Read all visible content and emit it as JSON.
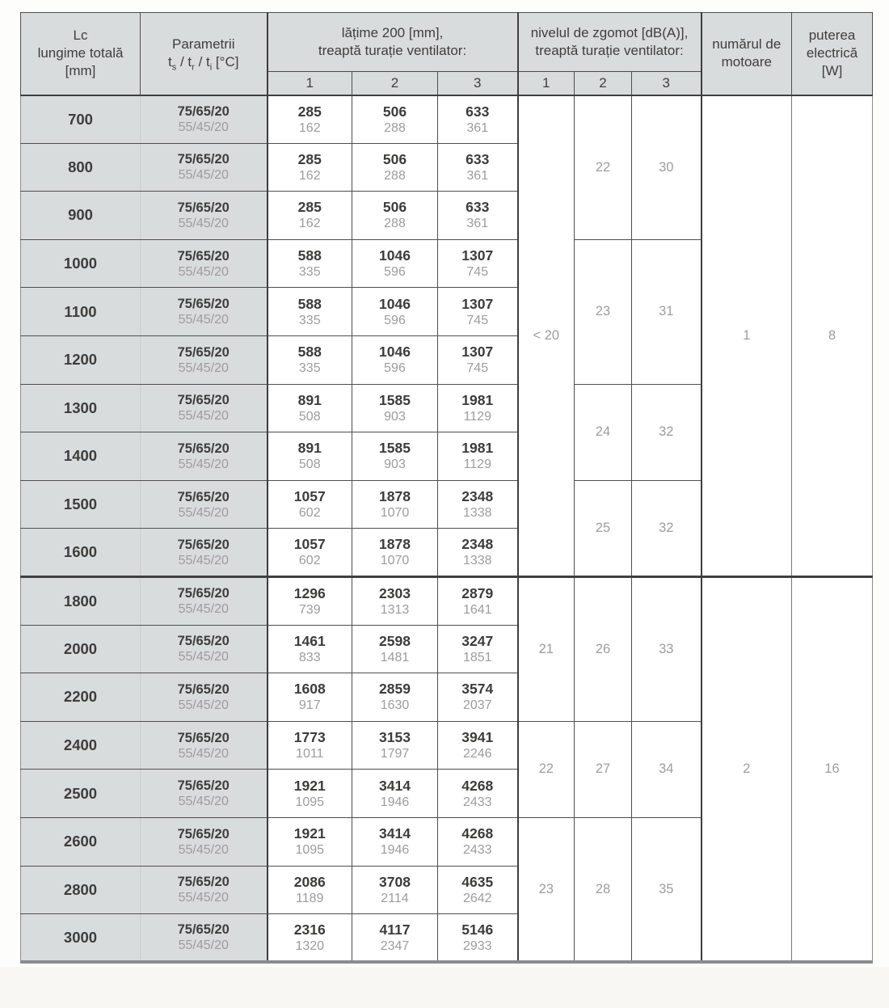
{
  "table": {
    "header": {
      "lc": {
        "line1": "Lc",
        "line2": "lungime totală",
        "line3": "[mm]"
      },
      "param": {
        "title": "Parametrii",
        "t1": "t",
        "sub1": "s",
        "mid1": " / t",
        "sub2": "r",
        "mid2": " / t",
        "sub3": "i",
        "unit": " [°C]"
      },
      "width_section": {
        "line1": "lățime 200 [mm],",
        "line2": "treaptă turație ventilator:"
      },
      "noise_section": {
        "line1": "nivelul de zgomot [dB(A)],",
        "line2": "treaptă turație ventilator:"
      },
      "motors": {
        "line1": "numărul de",
        "line2": "motoare"
      },
      "power": {
        "line1": "puterea",
        "line2": "electrică",
        "line3": "[W]"
      },
      "fan_steps": [
        "1",
        "2",
        "3"
      ],
      "noise_steps": [
        "1",
        "2",
        "3"
      ]
    },
    "sections": [
      {
        "name": "single-motor",
        "rows": [
          {
            "lc": "700",
            "param_hot": "75/65/20",
            "param_low": "55/45/20",
            "outputs": [
              [
                "285",
                "162"
              ],
              [
                "506",
                "288"
              ],
              [
                "633",
                "361"
              ]
            ]
          },
          {
            "lc": "800",
            "param_hot": "75/65/20",
            "param_low": "55/45/20",
            "outputs": [
              [
                "285",
                "162"
              ],
              [
                "506",
                "288"
              ],
              [
                "633",
                "361"
              ]
            ]
          },
          {
            "lc": "900",
            "param_hot": "75/65/20",
            "param_low": "55/45/20",
            "outputs": [
              [
                "285",
                "162"
              ],
              [
                "506",
                "288"
              ],
              [
                "633",
                "361"
              ]
            ]
          },
          {
            "lc": "1000",
            "param_hot": "75/65/20",
            "param_low": "55/45/20",
            "outputs": [
              [
                "588",
                "335"
              ],
              [
                "1046",
                "596"
              ],
              [
                "1307",
                "745"
              ]
            ]
          },
          {
            "lc": "1100",
            "param_hot": "75/65/20",
            "param_low": "55/45/20",
            "outputs": [
              [
                "588",
                "335"
              ],
              [
                "1046",
                "596"
              ],
              [
                "1307",
                "745"
              ]
            ]
          },
          {
            "lc": "1200",
            "param_hot": "75/65/20",
            "param_low": "55/45/20",
            "outputs": [
              [
                "588",
                "335"
              ],
              [
                "1046",
                "596"
              ],
              [
                "1307",
                "745"
              ]
            ]
          },
          {
            "lc": "1300",
            "param_hot": "75/65/20",
            "param_low": "55/45/20",
            "outputs": [
              [
                "891",
                "508"
              ],
              [
                "1585",
                "903"
              ],
              [
                "1981",
                "1129"
              ]
            ]
          },
          {
            "lc": "1400",
            "param_hot": "75/65/20",
            "param_low": "55/45/20",
            "outputs": [
              [
                "891",
                "508"
              ],
              [
                "1585",
                "903"
              ],
              [
                "1981",
                "1129"
              ]
            ]
          },
          {
            "lc": "1500",
            "param_hot": "75/65/20",
            "param_low": "55/45/20",
            "outputs": [
              [
                "1057",
                "602"
              ],
              [
                "1878",
                "1070"
              ],
              [
                "2348",
                "1338"
              ]
            ]
          },
          {
            "lc": "1600",
            "param_hot": "75/65/20",
            "param_low": "55/45/20",
            "outputs": [
              [
                "1057",
                "602"
              ],
              [
                "1878",
                "1070"
              ],
              [
                "2348",
                "1338"
              ]
            ]
          }
        ],
        "noise": {
          "step1": [
            {
              "span": 10,
              "value": "< 20"
            }
          ],
          "step2": [
            {
              "span": 3,
              "value": "22"
            },
            {
              "span": 3,
              "value": "23"
            },
            {
              "span": 2,
              "value": "24"
            },
            {
              "span": 2,
              "value": "25"
            }
          ],
          "step3": [
            {
              "span": 3,
              "value": "30"
            },
            {
              "span": 3,
              "value": "31"
            },
            {
              "span": 2,
              "value": "32"
            },
            {
              "span": 2,
              "value": "32"
            }
          ]
        },
        "motors": {
          "span": 10,
          "value": "1"
        },
        "power": {
          "span": 10,
          "value": "8"
        }
      },
      {
        "name": "dual-motor",
        "rows": [
          {
            "lc": "1800",
            "param_hot": "75/65/20",
            "param_low": "55/45/20",
            "outputs": [
              [
                "1296",
                "739"
              ],
              [
                "2303",
                "1313"
              ],
              [
                "2879",
                "1641"
              ]
            ]
          },
          {
            "lc": "2000",
            "param_hot": "75/65/20",
            "param_low": "55/45/20",
            "outputs": [
              [
                "1461",
                "833"
              ],
              [
                "2598",
                "1481"
              ],
              [
                "3247",
                "1851"
              ]
            ]
          },
          {
            "lc": "2200",
            "param_hot": "75/65/20",
            "param_low": "55/45/20",
            "outputs": [
              [
                "1608",
                "917"
              ],
              [
                "2859",
                "1630"
              ],
              [
                "3574",
                "2037"
              ]
            ]
          },
          {
            "lc": "2400",
            "param_hot": "75/65/20",
            "param_low": "55/45/20",
            "outputs": [
              [
                "1773",
                "1011"
              ],
              [
                "3153",
                "1797"
              ],
              [
                "3941",
                "2246"
              ]
            ]
          },
          {
            "lc": "2500",
            "param_hot": "75/65/20",
            "param_low": "55/45/20",
            "outputs": [
              [
                "1921",
                "1095"
              ],
              [
                "3414",
                "1946"
              ],
              [
                "4268",
                "2433"
              ]
            ]
          },
          {
            "lc": "2600",
            "param_hot": "75/65/20",
            "param_low": "55/45/20",
            "outputs": [
              [
                "1921",
                "1095"
              ],
              [
                "3414",
                "1946"
              ],
              [
                "4268",
                "2433"
              ]
            ]
          },
          {
            "lc": "2800",
            "param_hot": "75/65/20",
            "param_low": "55/45/20",
            "outputs": [
              [
                "2086",
                "1189"
              ],
              [
                "3708",
                "2114"
              ],
              [
                "4635",
                "2642"
              ]
            ]
          },
          {
            "lc": "3000",
            "param_hot": "75/65/20",
            "param_low": "55/45/20",
            "outputs": [
              [
                "2316",
                "1320"
              ],
              [
                "4117",
                "2347"
              ],
              [
                "5146",
                "2933"
              ]
            ]
          }
        ],
        "noise": {
          "step1": [
            {
              "span": 3,
              "value": "21"
            },
            {
              "span": 2,
              "value": "22"
            },
            {
              "span": 3,
              "value": "23"
            }
          ],
          "step2": [
            {
              "span": 3,
              "value": "26"
            },
            {
              "span": 2,
              "value": "27"
            },
            {
              "span": 3,
              "value": "28"
            }
          ],
          "step3": [
            {
              "span": 3,
              "value": "33"
            },
            {
              "span": 2,
              "value": "34"
            },
            {
              "span": 3,
              "value": "35"
            }
          ]
        },
        "motors": {
          "span": 8,
          "value": "2"
        },
        "power": {
          "span": 8,
          "value": "16"
        }
      }
    ]
  }
}
